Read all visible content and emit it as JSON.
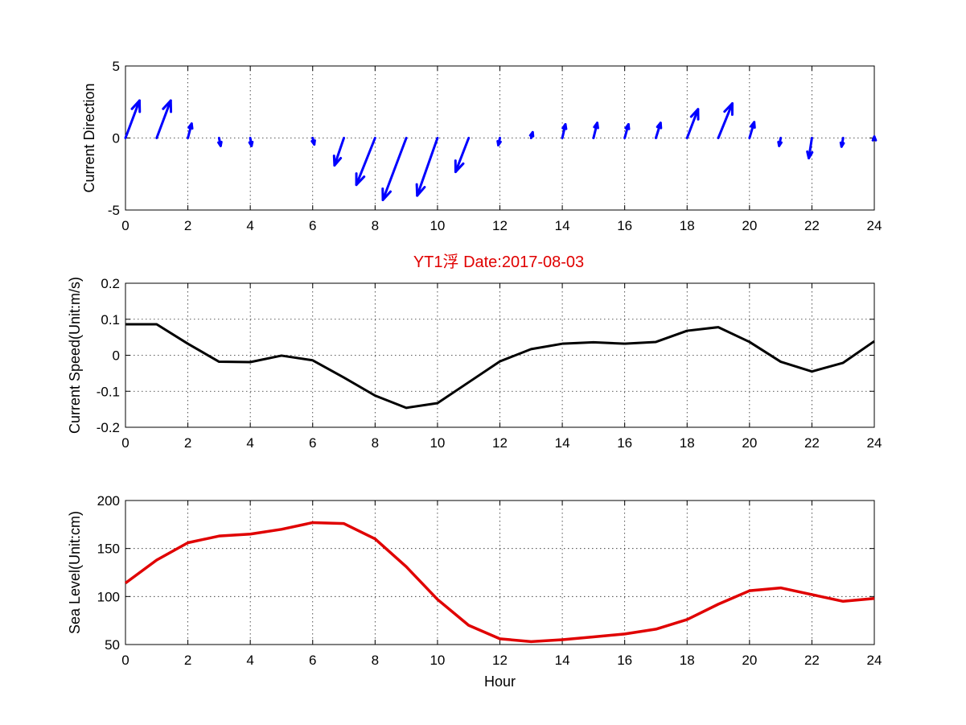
{
  "title": "YT1浮   Date:2017-08-03",
  "colors": {
    "direction": "#0000ff",
    "speed": "#000000",
    "sea_level": "#e00000",
    "title": "#e00000"
  },
  "chart_data": [
    {
      "type": "quiver",
      "ylabel": "Current Direction",
      "xlim": [
        0,
        24
      ],
      "ylim": [
        -5,
        5
      ],
      "xticks": [
        "0",
        "2",
        "4",
        "6",
        "8",
        "10",
        "12",
        "14",
        "16",
        "18",
        "20",
        "22",
        "24"
      ],
      "yticks": [
        "-5",
        "0",
        "5"
      ],
      "grid": true,
      "x": [
        0,
        1,
        2,
        3,
        4,
        5,
        6,
        7,
        8,
        9,
        10,
        11,
        12,
        13,
        14,
        15,
        16,
        17,
        18,
        19,
        20,
        21,
        22,
        23,
        24
      ],
      "u": [
        0.45,
        0.45,
        0.12,
        0.05,
        0.04,
        0,
        0.05,
        -0.3,
        -0.6,
        -0.75,
        -0.65,
        -0.42,
        -0.05,
        0.05,
        0.1,
        0.12,
        0.12,
        0.15,
        0.35,
        0.45,
        0.15,
        -0.05,
        -0.1,
        -0.05,
        0
      ],
      "v": [
        2.6,
        2.6,
        1.0,
        -0.55,
        -0.55,
        0,
        -0.45,
        -1.9,
        -3.25,
        -4.3,
        -4.0,
        -2.35,
        -0.5,
        0.4,
        0.95,
        1.05,
        0.95,
        1.05,
        2.0,
        2.4,
        1.1,
        -0.55,
        -1.4,
        -0.6,
        0.1
      ]
    },
    {
      "type": "line",
      "ylabel": "Current Speed(Unit:m/s)",
      "xlim": [
        0,
        24
      ],
      "ylim": [
        -0.2,
        0.2
      ],
      "xticks": [
        "0",
        "2",
        "4",
        "6",
        "8",
        "10",
        "12",
        "14",
        "16",
        "18",
        "20",
        "22",
        "24"
      ],
      "yticks": [
        "-0.2",
        "-0.1",
        "0",
        "0.1",
        "0.2"
      ],
      "grid": true,
      "x": [
        0,
        1,
        2,
        3,
        4,
        5,
        6,
        7,
        8,
        9,
        10,
        11,
        12,
        13,
        14,
        15,
        16,
        17,
        18,
        19,
        20,
        21,
        22,
        23,
        24
      ],
      "y": [
        0.086,
        0.086,
        0.032,
        -0.018,
        -0.019,
        -0.001,
        -0.014,
        -0.062,
        -0.112,
        -0.146,
        -0.133,
        -0.075,
        -0.017,
        0.017,
        0.032,
        0.036,
        0.032,
        0.037,
        0.068,
        0.078,
        0.037,
        -0.018,
        -0.045,
        -0.021,
        0.039
      ]
    },
    {
      "type": "line",
      "ylabel": "Sea Level(Unit:cm)",
      "xlabel": "Hour",
      "xlim": [
        0,
        24
      ],
      "ylim": [
        50,
        200
      ],
      "xticks": [
        "0",
        "2",
        "4",
        "6",
        "8",
        "10",
        "12",
        "14",
        "16",
        "18",
        "20",
        "22",
        "24"
      ],
      "yticks": [
        "50",
        "100",
        "150",
        "200"
      ],
      "grid": true,
      "x": [
        0,
        1,
        2,
        3,
        4,
        5,
        6,
        7,
        8,
        9,
        10,
        11,
        12,
        13,
        14,
        15,
        16,
        17,
        18,
        19,
        20,
        21,
        22,
        23,
        24
      ],
      "y": [
        114,
        138,
        156,
        163,
        165,
        170,
        177,
        176,
        160,
        131,
        97,
        70,
        56,
        53,
        55,
        58,
        61,
        66,
        76,
        92,
        106,
        109,
        102,
        95,
        98
      ]
    }
  ]
}
